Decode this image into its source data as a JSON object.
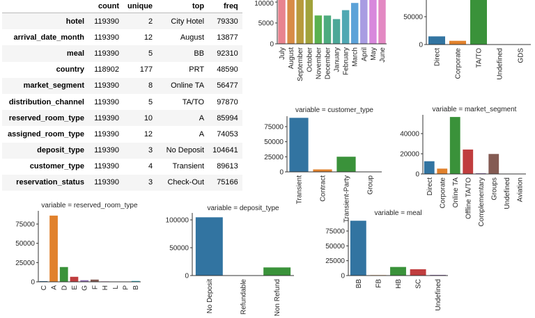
{
  "table": {
    "columns": [
      "count",
      "unique",
      "top",
      "freq"
    ],
    "rows": [
      {
        "name": "hotel",
        "count": "119390",
        "unique": "2",
        "top": "City Hotel",
        "freq": "79330"
      },
      {
        "name": "arrival_date_month",
        "count": "119390",
        "unique": "12",
        "top": "August",
        "freq": "13877"
      },
      {
        "name": "meal",
        "count": "119390",
        "unique": "5",
        "top": "BB",
        "freq": "92310"
      },
      {
        "name": "country",
        "count": "118902",
        "unique": "177",
        "top": "PRT",
        "freq": "48590"
      },
      {
        "name": "market_segment",
        "count": "119390",
        "unique": "8",
        "top": "Online TA",
        "freq": "56477"
      },
      {
        "name": "distribution_channel",
        "count": "119390",
        "unique": "5",
        "top": "TA/TO",
        "freq": "97870"
      },
      {
        "name": "reserved_room_type",
        "count": "119390",
        "unique": "10",
        "top": "A",
        "freq": "85994"
      },
      {
        "name": "assigned_room_type",
        "count": "119390",
        "unique": "12",
        "top": "A",
        "freq": "74053"
      },
      {
        "name": "deposit_type",
        "count": "119390",
        "unique": "3",
        "top": "No Deposit",
        "freq": "104641"
      },
      {
        "name": "customer_type",
        "count": "119390",
        "unique": "4",
        "top": "Transient",
        "freq": "89613"
      },
      {
        "name": "reservation_status",
        "count": "119390",
        "unique": "3",
        "top": "Check-Out",
        "freq": "75166"
      }
    ]
  },
  "chart_data": [
    {
      "type": "bar",
      "title": "",
      "categories": [
        "July",
        "August",
        "September",
        "October",
        "November",
        "December",
        "January",
        "February",
        "March",
        "April",
        "May",
        "June"
      ],
      "values": [
        12661,
        13877,
        10508,
        11160,
        6794,
        6780,
        5929,
        8068,
        9794,
        11089,
        11791,
        10939
      ],
      "yticks": [
        0,
        5000,
        10000
      ],
      "colors": [
        "#e8838f",
        "#d88c47",
        "#b79a3c",
        "#a1a23b",
        "#5ab150",
        "#4dab7f",
        "#4ca898",
        "#4fa8b3",
        "#5ba2d8",
        "#a89ce2",
        "#d888dc",
        "#e389c3"
      ]
    },
    {
      "type": "bar",
      "title": "",
      "categories": [
        "Direct",
        "Corporate",
        "TA/TO",
        "Undefined",
        "GDS"
      ],
      "values": [
        14645,
        6677,
        97870,
        5,
        193
      ],
      "yticks": [
        0,
        50000
      ],
      "colors": [
        "#3274a1",
        "#e1812c",
        "#3a923a",
        "#c03d3e",
        "#9372b2"
      ]
    },
    {
      "type": "bar",
      "title": "variable = customer_type",
      "categories": [
        "Transient",
        "Contract",
        "Transient-Party",
        "Group"
      ],
      "values": [
        89613,
        4076,
        25124,
        577
      ],
      "yticks": [
        0,
        25000,
        50000,
        75000
      ],
      "colors": [
        "#3274a1",
        "#e1812c",
        "#3a923a",
        "#c03d3e"
      ]
    },
    {
      "type": "bar",
      "title": "variable = market_segment",
      "categories": [
        "Direct",
        "Corporate",
        "Online TA",
        "Offline TA/TO",
        "Complementary",
        "Groups",
        "Undefined",
        "Aviation"
      ],
      "values": [
        12606,
        5295,
        56477,
        24219,
        743,
        19811,
        2,
        237
      ],
      "yticks": [
        0,
        20000,
        40000
      ],
      "colors": [
        "#3274a1",
        "#e1812c",
        "#3a923a",
        "#c03d3e",
        "#9372b2",
        "#845b53",
        "#d684bd",
        "#7f7f7f"
      ]
    },
    {
      "type": "bar",
      "title": "variable = reserved_room_type",
      "categories": [
        "C",
        "A",
        "D",
        "E",
        "G",
        "F",
        "H",
        "L",
        "P",
        "B"
      ],
      "values": [
        932,
        85994,
        19201,
        6535,
        2094,
        2897,
        601,
        6,
        12,
        1118
      ],
      "yticks": [
        0,
        25000,
        50000,
        75000
      ],
      "colors": [
        "#3274a1",
        "#e1812c",
        "#3a923a",
        "#c03d3e",
        "#9372b2",
        "#845b53",
        "#d684bd",
        "#7f7f7f",
        "#a9aa35",
        "#2eb6c4"
      ]
    },
    {
      "type": "bar",
      "title": "variable = deposit_type",
      "categories": [
        "No Deposit",
        "Refundable",
        "Non Refund"
      ],
      "values": [
        104641,
        162,
        14587
      ],
      "yticks": [
        0,
        50000,
        100000
      ],
      "colors": [
        "#3274a1",
        "#e1812c",
        "#3a923a"
      ]
    },
    {
      "type": "bar",
      "title": "variable = meal",
      "categories": [
        "BB",
        "FB",
        "HB",
        "SC",
        "Undefined"
      ],
      "values": [
        92310,
        798,
        14463,
        10650,
        1169
      ],
      "yticks": [
        0,
        25000,
        50000,
        75000
      ],
      "colors": [
        "#3274a1",
        "#e1812c",
        "#3a923a",
        "#c03d3e",
        "#9372b2"
      ]
    }
  ]
}
